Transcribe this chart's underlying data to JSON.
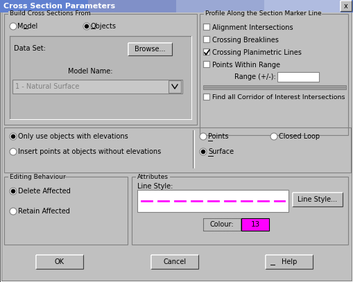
{
  "title": "Cross Section Parameters",
  "bg_color": "#c0c0c0",
  "title_grad_left": "#6080c8",
  "title_grad_right": "#a8b8e0",
  "title_text_color": "#ffffff",
  "section1_title": "Build Cross Sections From",
  "section2_title": "Profile Along the Section Marker Line",
  "section3_title": "Editing Behaviour",
  "section4_title": "Attributes",
  "radio_model": "Model",
  "radio_objects": "Objects",
  "label_dataset": "Data Set:",
  "btn_browse": "Browse...",
  "label_modelname": "Model Name:",
  "combo_modelname": "1 - Natural Surface",
  "check1": "Alignment Intersections",
  "check2": "Crossing Breaklines",
  "check3": "Crossing Planimetric Lines",
  "check4": "Points Within Range",
  "label_range": "Range (+/-):",
  "check5": "Find all Corridor of Interest Intersections",
  "radio_elevations": "Only use objects with elevations",
  "radio_insert": "Insert points at objects without elevations",
  "radio_points": "Points",
  "radio_closedloop": "Closed Loop",
  "radio_surface": "Surface",
  "radio_deleteaffected": "Delete Affected",
  "radio_retainaffected": "Retain Affected",
  "label_linestyle": "Line Style:",
  "btn_linestyle": "Line Style...",
  "label_colour": "Colour:",
  "colour_value": "13",
  "colour_box_color": "#ff00ff",
  "btn_ok": "OK",
  "btn_cancel": "Cancel",
  "btn_help": "Help",
  "line_color": "#ff00ff",
  "figw": 5.09,
  "figh": 4.07,
  "dpi": 100
}
